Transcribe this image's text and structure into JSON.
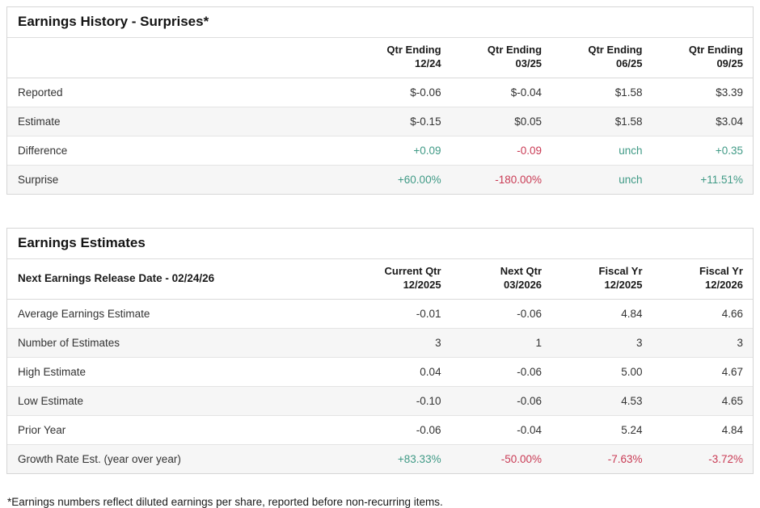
{
  "colors": {
    "positive": "#409a86",
    "negative": "#c93a54",
    "stripe": "#f6f6f6",
    "border": "#d6d6d6"
  },
  "earnings_history": {
    "title": "Earnings History - Surprises*",
    "columns": [
      {
        "line1": "Qtr Ending",
        "line2": "12/24"
      },
      {
        "line1": "Qtr Ending",
        "line2": "03/25"
      },
      {
        "line1": "Qtr Ending",
        "line2": "06/25"
      },
      {
        "line1": "Qtr Ending",
        "line2": "09/25"
      }
    ],
    "rows": [
      {
        "label": "Reported",
        "values": [
          "$-0.06",
          "$-0.04",
          "$1.58",
          "$3.39"
        ]
      },
      {
        "label": "Estimate",
        "values": [
          "$-0.15",
          "$0.05",
          "$1.58",
          "$3.04"
        ]
      },
      {
        "label": "Difference",
        "values": [
          "+0.09",
          "-0.09",
          "unch",
          "+0.35"
        ]
      },
      {
        "label": "Surprise",
        "values": [
          "+60.00%",
          "-180.00%",
          "unch",
          "+11.51%"
        ]
      }
    ]
  },
  "earnings_estimates": {
    "title": "Earnings Estimates",
    "release_date_label": "Next Earnings Release Date - 02/24/26",
    "columns": [
      {
        "line1": "Current Qtr",
        "line2": "12/2025"
      },
      {
        "line1": "Next Qtr",
        "line2": "03/2026"
      },
      {
        "line1": "Fiscal Yr",
        "line2": "12/2025"
      },
      {
        "line1": "Fiscal Yr",
        "line2": "12/2026"
      }
    ],
    "rows": [
      {
        "label": "Average Earnings Estimate",
        "values": [
          "-0.01",
          "-0.06",
          "4.84",
          "4.66"
        ]
      },
      {
        "label": "Number of Estimates",
        "values": [
          "3",
          "1",
          "3",
          "3"
        ]
      },
      {
        "label": "High Estimate",
        "values": [
          "0.04",
          "-0.06",
          "5.00",
          "4.67"
        ]
      },
      {
        "label": "Low Estimate",
        "values": [
          "-0.10",
          "-0.06",
          "4.53",
          "4.65"
        ]
      },
      {
        "label": "Prior Year",
        "values": [
          "-0.06",
          "-0.04",
          "5.24",
          "4.84"
        ]
      },
      {
        "label": "Growth Rate Est. (year over year)",
        "values": [
          "+83.33%",
          "-50.00%",
          "-7.63%",
          "-3.72%"
        ]
      }
    ]
  },
  "footnote": "*Earnings numbers reflect diluted earnings per share, reported before non-recurring items."
}
